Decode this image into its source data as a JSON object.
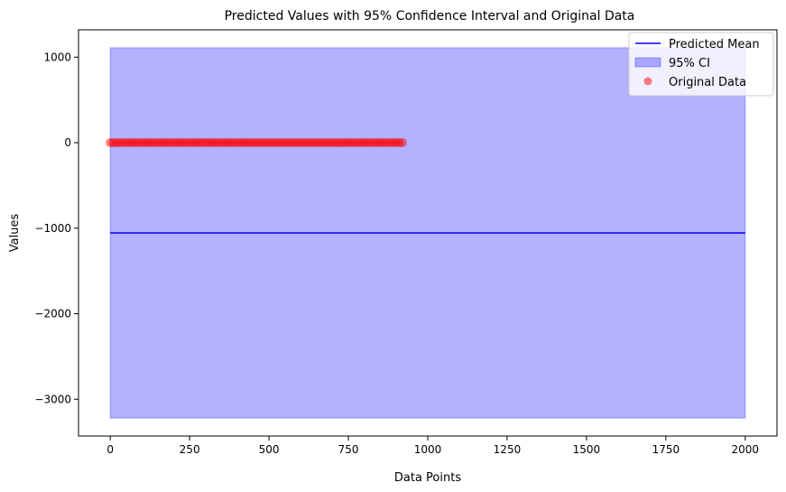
{
  "chart_data": {
    "type": "line",
    "title": "Predicted Values with 95% Confidence Interval and Original Data",
    "xlabel": "Data Points",
    "ylabel": "Values",
    "xlim": [
      -100,
      2100
    ],
    "ylim": [
      -3430,
      1320
    ],
    "xticks": [
      0,
      250,
      500,
      750,
      1000,
      1250,
      1500,
      1750,
      2000
    ],
    "xtick_labels": [
      "0",
      "250",
      "500",
      "750",
      "1000",
      "1250",
      "1500",
      "1750",
      "2000"
    ],
    "yticks": [
      -3000,
      -2000,
      -1000,
      0,
      1000
    ],
    "ytick_labels": [
      "−3000",
      "−2000",
      "−1000",
      "0",
      "1000"
    ],
    "grid": false,
    "legend_position": "top-right",
    "series": [
      {
        "name": "Predicted Mean",
        "kind": "line",
        "color": "#0000ff",
        "x": [
          0,
          2000
        ],
        "y": [
          -1055,
          -1055
        ]
      },
      {
        "name": "95% CI",
        "kind": "band",
        "color": "#0000ff",
        "alpha": 0.3,
        "x": [
          0,
          2000
        ],
        "lower": [
          -3220,
          -3220
        ],
        "upper": [
          1110,
          1110
        ]
      },
      {
        "name": "Original Data",
        "kind": "scatter",
        "color": "#ff0000",
        "alpha": 0.5,
        "x_range": [
          0,
          920
        ],
        "y_value": 0
      }
    ]
  }
}
